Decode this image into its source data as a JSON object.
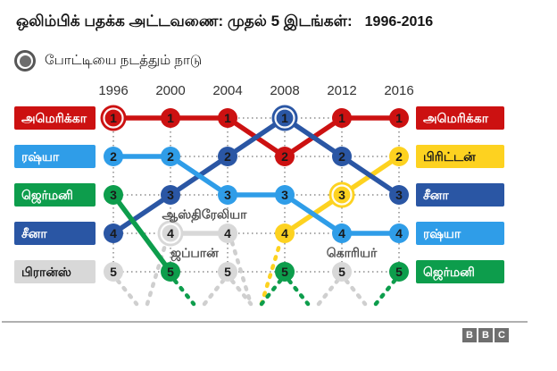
{
  "title": {
    "text": "ஒலிம்பிக் பதக்க அட்டவணை: முதல் 5 இடங்கள்:",
    "range": "1996-2016"
  },
  "legend": {
    "host_label": "போட்டியை நடத்தும் நாடு"
  },
  "colors": {
    "red": "#cc1111",
    "light_blue": "#2f9de8",
    "dark_blue": "#2a56a4",
    "green": "#0d9d4c",
    "yellow": "#fdd220",
    "gray": "#d8d8d8",
    "gray_dash": "#cfcfcf",
    "grid": "#8c8c8c",
    "number": "#1a1a1a",
    "annotation": "#4d4d4d"
  },
  "left_labels": [
    {
      "text": "அமெரிக்கா",
      "color_key": "red",
      "text_color": "#ffffff",
      "rank": 1
    },
    {
      "text": "ரஷ்யா",
      "color_key": "light_blue",
      "text_color": "#ffffff",
      "rank": 2
    },
    {
      "text": "ஜெர்மனி",
      "color_key": "green",
      "text_color": "#ffffff",
      "rank": 3
    },
    {
      "text": "சீனா",
      "color_key": "dark_blue",
      "text_color": "#ffffff",
      "rank": 4
    },
    {
      "text": "பிரான்ஸ்",
      "color_key": "gray",
      "text_color": "#1a1a1a",
      "rank": 5
    }
  ],
  "right_labels": [
    {
      "text": "அமெரிக்கா",
      "color_key": "red",
      "text_color": "#ffffff",
      "rank": 1
    },
    {
      "text": "பிரிட்டன்",
      "color_key": "yellow",
      "text_color": "#1a1a1a",
      "rank": 2
    },
    {
      "text": "சீனா",
      "color_key": "dark_blue",
      "text_color": "#ffffff",
      "rank": 3
    },
    {
      "text": "ரஷ்யா",
      "color_key": "light_blue",
      "text_color": "#ffffff",
      "rank": 4
    },
    {
      "text": "ஜெர்மனி",
      "color_key": "green",
      "text_color": "#ffffff",
      "rank": 5
    }
  ],
  "annotations": [
    {
      "text": "ஆஸ்திரேலியா",
      "anchor": "between-2000-2004-rank-4"
    },
    {
      "text": "ஜப்பான்",
      "anchor": "above-2004-rank-5"
    },
    {
      "text": "கொரியர்",
      "anchor": "above-2012-rank-5"
    }
  ],
  "chart_data": {
    "type": "bump",
    "title": "ஒலிம்பிக் பதக்க அட்டவணை: முதல் 5 இடங்கள்: 1996-2016",
    "x": [
      1996,
      2000,
      2004,
      2008,
      2012,
      2016
    ],
    "ranks_shown": [
      1,
      2,
      3,
      4,
      5
    ],
    "rank_axis": "1 = top of medal table; dashed stubs = outside top 5",
    "host_marker": "ringed circle = host country (போட்டியை நடத்தும் நாடு)",
    "series": [
      {
        "name": "அமெரிக்கா",
        "color_key": "red",
        "ranks": [
          1,
          1,
          1,
          2,
          1,
          1
        ],
        "host_years": [
          1996
        ]
      },
      {
        "name": "ரஷ்யா",
        "color_key": "light_blue",
        "ranks": [
          2,
          2,
          3,
          3,
          4,
          4
        ],
        "host_years": []
      },
      {
        "name": "சீனா",
        "color_key": "dark_blue",
        "ranks": [
          4,
          3,
          2,
          1,
          2,
          3
        ],
        "host_years": [
          2008
        ]
      },
      {
        "name": "ஜெர்மனி",
        "color_key": "green",
        "ranks": [
          3,
          5,
          null,
          5,
          null,
          5
        ],
        "host_years": []
      },
      {
        "name": "பிரான்ஸ்",
        "color_key": "gray",
        "ranks": [
          5,
          null,
          null,
          null,
          null,
          null
        ],
        "host_years": []
      },
      {
        "name": "ஆஸ்திரேலியா",
        "color_key": "gray",
        "ranks": [
          null,
          4,
          4,
          null,
          null,
          null
        ],
        "host_years": [
          2000
        ]
      },
      {
        "name": "ஜப்பான்",
        "color_key": "gray",
        "ranks": [
          null,
          null,
          5,
          null,
          null,
          null
        ],
        "host_years": []
      },
      {
        "name": "பிரிட்டன்",
        "color_key": "yellow",
        "ranks": [
          null,
          null,
          null,
          4,
          3,
          2
        ],
        "host_years": [
          2012
        ]
      },
      {
        "name": "கொரியர்",
        "color_key": "gray",
        "ranks": [
          null,
          null,
          null,
          null,
          5,
          null
        ],
        "host_years": []
      }
    ]
  },
  "footer": {
    "logo_letters": [
      "B",
      "B",
      "C"
    ]
  }
}
